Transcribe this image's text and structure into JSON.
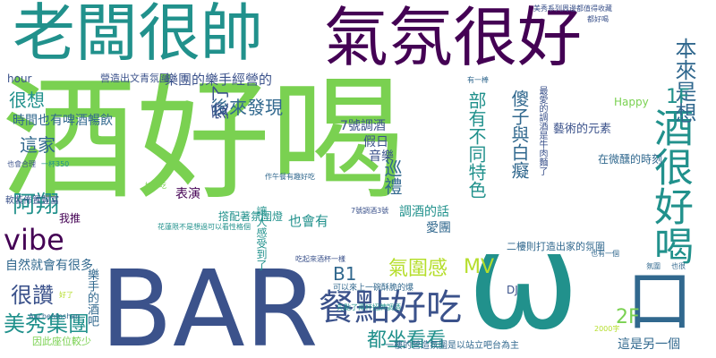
{
  "palette": {
    "green": "#7ad151",
    "teal": "#21918c",
    "navy": "#3b528b",
    "purple": "#440154",
    "lime": "#b5de2b",
    "sea": "#22a884",
    "indigo": "#31688e"
  },
  "words": [
    "老闆很帥",
    "氣氛很好",
    "酒好喝",
    "BAR",
    "ω",
    "口",
    "酒很好喝",
    "本來是想",
    "餐點好吃",
    "vibe",
    "美秀集團",
    "阿翔",
    "很讚",
    "都坐看看",
    "氣圍感",
    "部有不同特色",
    "傻子與白癡",
    "後來發現",
    "愛了",
    "巡禮",
    "很想",
    "這家",
    "1F",
    "2F",
    "B1",
    "MV",
    "樂團的樂手經營的",
    "營造出文青氛圍",
    "時間也有啤酒暢飲",
    "7號調酒",
    "假日",
    "音樂",
    "表演",
    "也會有",
    "愛團",
    "調酒的話",
    "藝術的元素",
    "Happy",
    "hour",
    "自然就會有很多",
    "二樓則打造出家的氛圍",
    "這是另一個",
    "一樓的營造氛圍是以站立吧台為主",
    "DJ",
    "可以來上一碗酥脆的爆",
    "撘配著氛圍燈",
    "我推",
    "軟裝佈置豐富",
    "因此座位較少",
    "在微醺的時刻",
    "最愛的調酒是牛肉麵了",
    "樂手的酒吧",
    "讓人感受到了",
    "好想吃",
    "7號調酒3號",
    "一杯350",
    "也會合理",
    "Auchentoshan",
    "有一棒",
    "好了",
    "都好喝",
    "美秀系列周邊都值得收藏",
    "花蓮限不是想過可以看性格個",
    "作午餐有趣好吃",
    "吃起來酒杯一樣",
    "也有一個",
    "先點了兩杯招牌調酒",
    "2000字",
    "也很",
    "氛圍"
  ]
}
